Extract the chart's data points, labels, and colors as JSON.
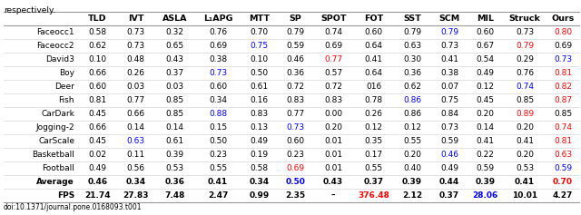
{
  "title_text": "respectively.",
  "doi": "doi:10.1371/journal.pone.0168093.t001",
  "columns": [
    "",
    "TLD",
    "IVT",
    "ASLA",
    "L₁APG",
    "MTT",
    "SP",
    "SPOT",
    "FOT",
    "SST",
    "SCM",
    "MIL",
    "Struck",
    "Ours"
  ],
  "rows": [
    [
      "Faceocc1",
      "0.58",
      "0.73",
      "0.32",
      "0.76",
      "0.70",
      "0.79",
      "0.74",
      "0.60",
      "0.79",
      "0.79",
      "0.60",
      "0.73",
      "0.80"
    ],
    [
      "Faceocc2",
      "0.62",
      "0.73",
      "0.65",
      "0.69",
      "0.75",
      "0.59",
      "0.69",
      "0.64",
      "0.63",
      "0.73",
      "0.67",
      "0.79",
      "0.69"
    ],
    [
      "David3",
      "0.10",
      "0.48",
      "0.43",
      "0.38",
      "0.10",
      "0.46",
      "0.77",
      "0.41",
      "0.30",
      "0.41",
      "0.54",
      "0.29",
      "0.73"
    ],
    [
      "Boy",
      "0.66",
      "0.26",
      "0.37",
      "0.73",
      "0.50",
      "0.36",
      "0.57",
      "0.64",
      "0.36",
      "0.38",
      "0.49",
      "0.76",
      "0.81"
    ],
    [
      "Deer",
      "0.60",
      "0.03",
      "0.03",
      "0.60",
      "0.61",
      "0.72",
      "0.72",
      "016",
      "0.62",
      "0.07",
      "0.12",
      "0.74",
      "0.82"
    ],
    [
      "Fish",
      "0.81",
      "0.77",
      "0.85",
      "0.34",
      "0.16",
      "0.83",
      "0.83",
      "0.78",
      "0.86",
      "0.75",
      "0.45",
      "0.85",
      "0.87"
    ],
    [
      "CarDark",
      "0.45",
      "0.66",
      "0.85",
      "0.88",
      "0.83",
      "0.77",
      "0.00",
      "0.26",
      "0.86",
      "0.84",
      "0.20",
      "0.89",
      "0.85"
    ],
    [
      "Jogging-2",
      "0.66",
      "0.14",
      "0.14",
      "0.15",
      "0.13",
      "0.73",
      "0.20",
      "0.12",
      "0.12",
      "0.73",
      "0.14",
      "0.20",
      "0.74"
    ],
    [
      "CarScale",
      "0.45",
      "0.63",
      "0.61",
      "0.50",
      "0.49",
      "0.60",
      "0.01",
      "0.35",
      "0.55",
      "0.59",
      "0.41",
      "0.41",
      "0.81"
    ],
    [
      "Basketball",
      "0.02",
      "0.11",
      "0.39",
      "0.23",
      "0.19",
      "0.23",
      "0.01",
      "0.17",
      "0.20",
      "0.46",
      "0.22",
      "0.20",
      "0.63"
    ],
    [
      "Football",
      "0.49",
      "0.56",
      "0.53",
      "0.55",
      "0.58",
      "0.69",
      "0.01",
      "0.55",
      "0.40",
      "0.49",
      "0.59",
      "0.53",
      "0.59"
    ],
    [
      "Average",
      "0.46",
      "0.34",
      "0.36",
      "0.41",
      "0.34",
      "0.50",
      "0.43",
      "0.37",
      "0.39",
      "0.44",
      "0.39",
      "0.41",
      "0.70"
    ],
    [
      "FPS",
      "21.74",
      "27.83",
      "7.48",
      "2.47",
      "0.99",
      "2.35",
      "–",
      "376.48",
      "2.12",
      "0.37",
      "28.06",
      "10.01",
      "4.27"
    ]
  ],
  "cell_colors": {
    "0,10": "blue",
    "0,13": "red",
    "1,5": "blue",
    "1,12": "red",
    "2,7": "red",
    "2,13": "blue",
    "3,4": "blue",
    "3,13": "red",
    "4,12": "blue",
    "4,13": "red",
    "5,9": "blue",
    "5,13": "red",
    "6,4": "blue",
    "6,12": "red",
    "7,6": "blue",
    "7,13": "red",
    "8,2": "blue",
    "8,13": "red",
    "9,10": "blue",
    "9,13": "red",
    "10,6": "red",
    "10,13": "blue",
    "11,6": "blue",
    "11,13": "red",
    "12,8": "red",
    "12,11": "blue"
  },
  "bold_rows": [
    11,
    12
  ],
  "fontsize": 6.5,
  "header_fontsize": 6.8,
  "row_label_fontsize": 6.5
}
